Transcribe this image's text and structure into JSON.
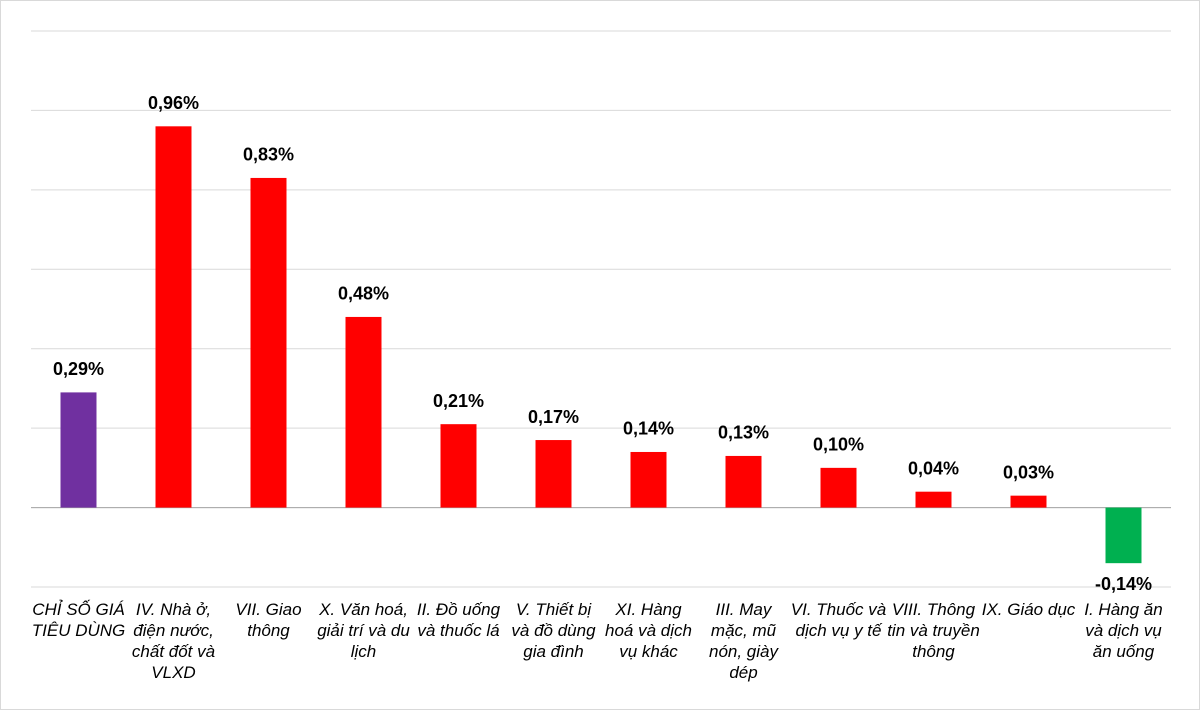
{
  "chart_data": {
    "type": "bar",
    "categories": [
      "CHỈ SỐ GIÁ TIÊU DÙNG",
      "IV. Nhà ở, điện nước, chất đốt và VLXD",
      "VII. Giao thông",
      "X. Văn hoá, giải trí và du lịch",
      "II. Đồ uống và thuốc lá",
      "V. Thiết bị và đồ dùng gia đình",
      "XI. Hàng hoá và dịch vụ khác",
      "III. May mặc, mũ nón, giày dép",
      "VI. Thuốc và dịch vụ y tế",
      "VIII. Thông tin và truyền thông",
      "IX. Giáo dục",
      "I. Hàng ăn và dịch vụ ăn uống"
    ],
    "values": [
      0.29,
      0.96,
      0.83,
      0.48,
      0.21,
      0.17,
      0.14,
      0.13,
      0.1,
      0.04,
      0.03,
      -0.14
    ],
    "value_labels": [
      "0,29%",
      "0,96%",
      "0,83%",
      "0,48%",
      "0,21%",
      "0,17%",
      "0,14%",
      "0,13%",
      "0,10%",
      "0,04%",
      "0,03%",
      "-0,14%"
    ],
    "colors": [
      "#7030a0",
      "#ff0000",
      "#ff0000",
      "#ff0000",
      "#ff0000",
      "#ff0000",
      "#ff0000",
      "#ff0000",
      "#ff0000",
      "#ff0000",
      "#ff0000",
      "#00b050"
    ],
    "ylim": [
      -0.2,
      1.2
    ],
    "yticks": [
      -0.2,
      0,
      0.2,
      0.4,
      0.6,
      0.8,
      1.0,
      1.2
    ],
    "grid": true
  }
}
